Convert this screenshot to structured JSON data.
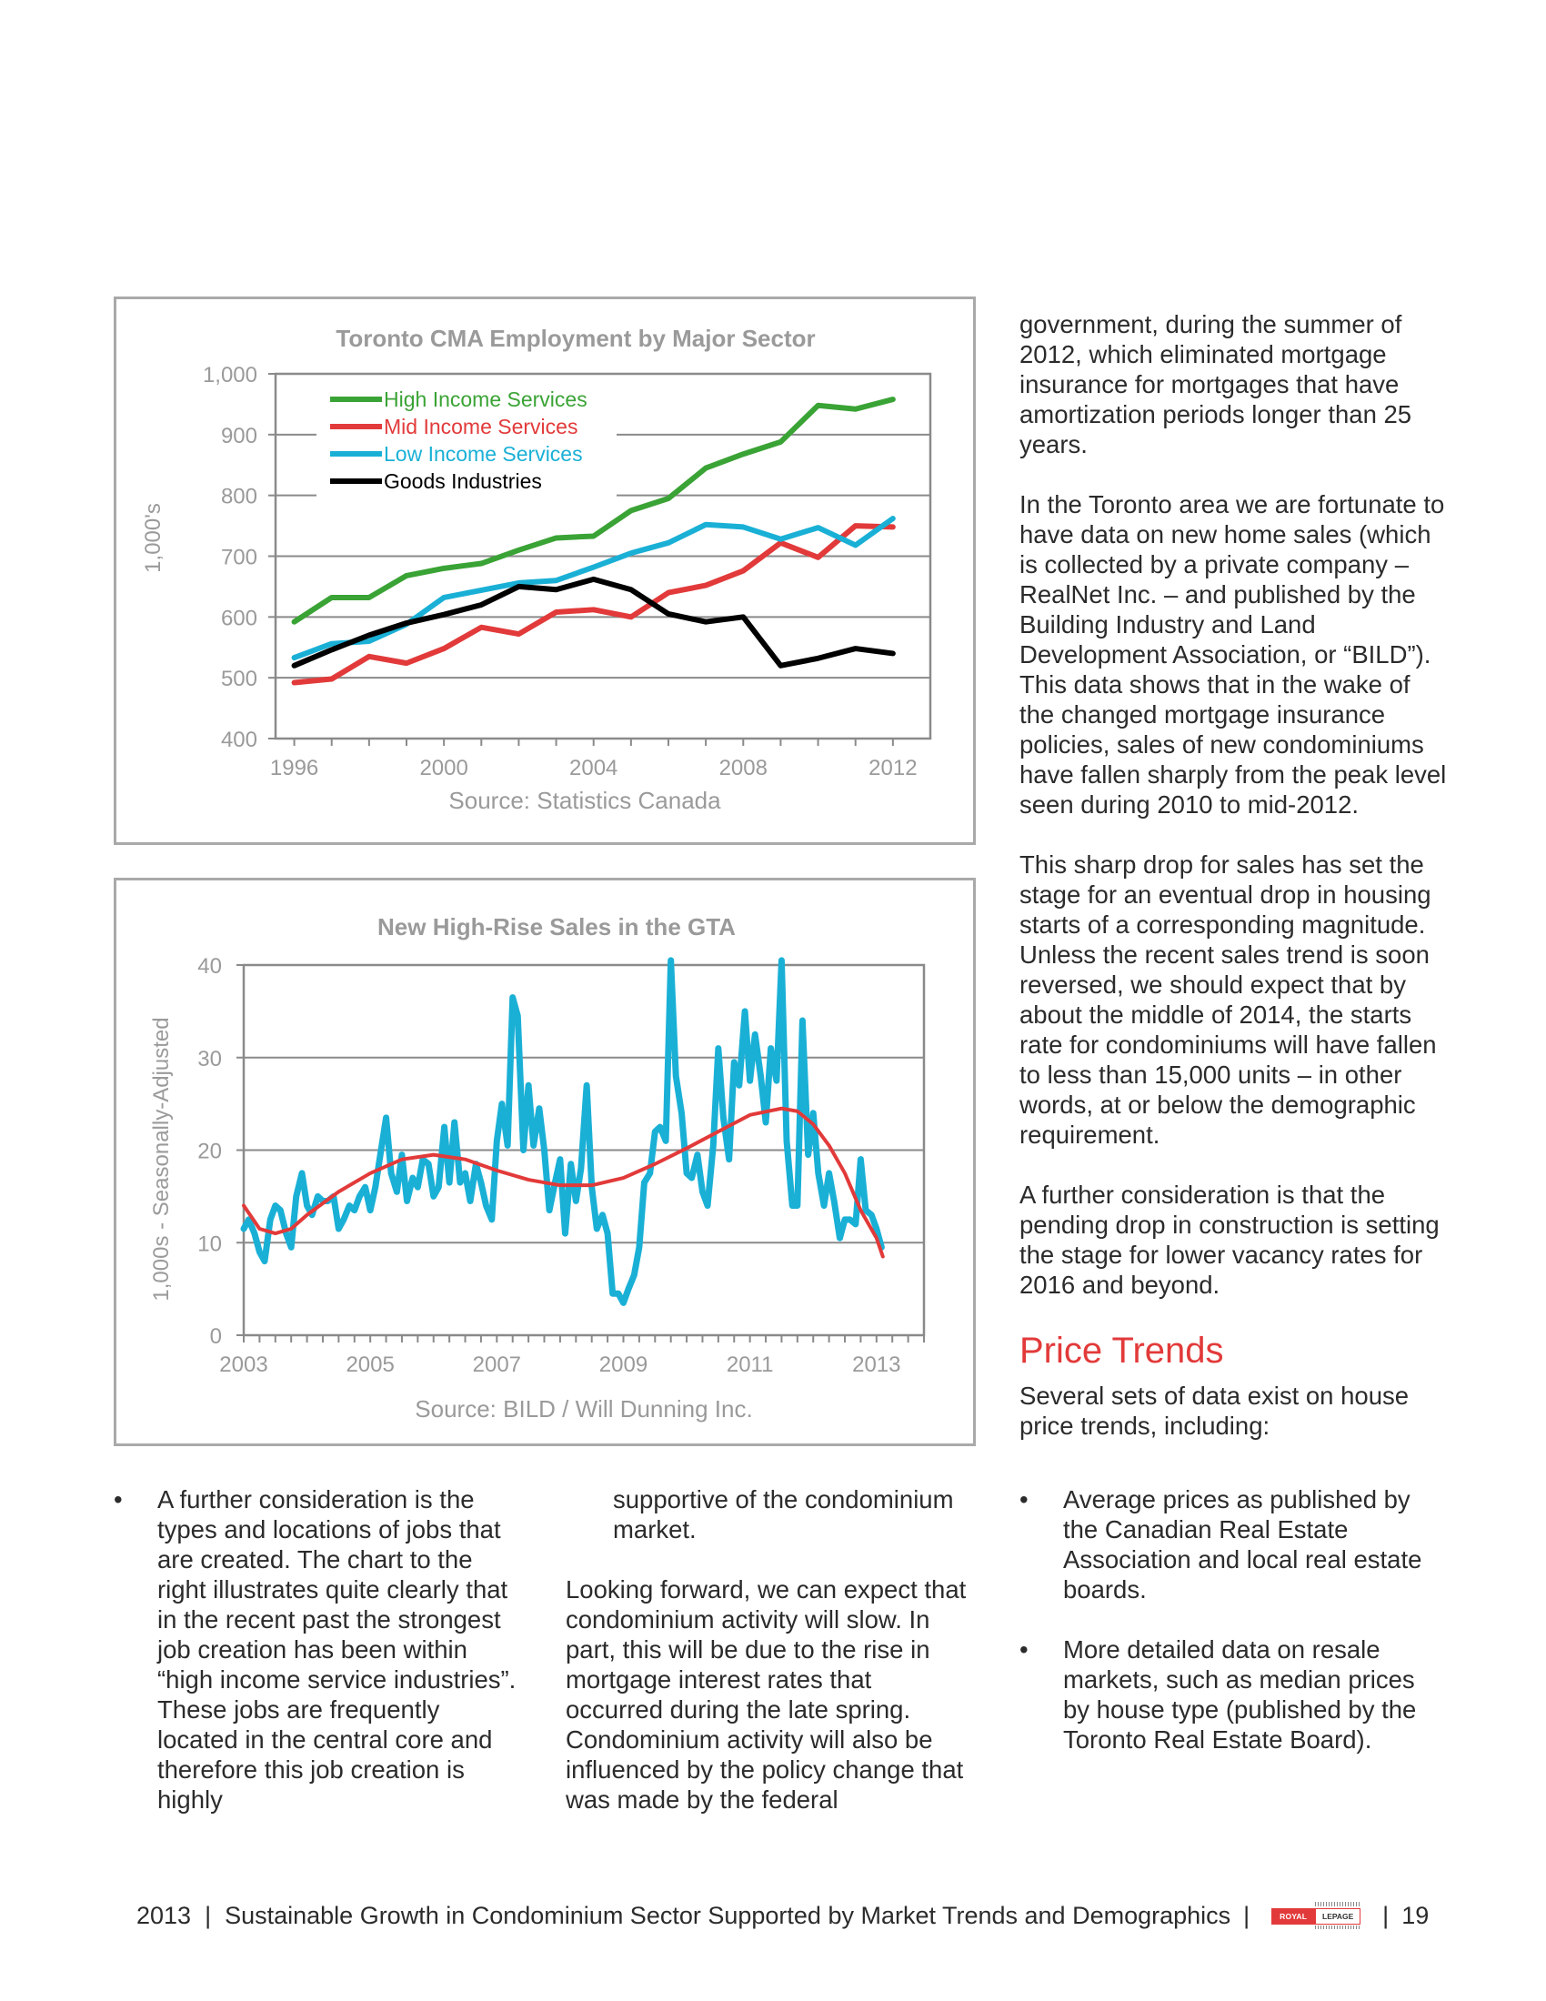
{
  "charts": {
    "employment": {
      "title": "Toronto CMA Employment by Major Sector",
      "ylabel": "1,000's",
      "source": "Source:  Statistics Canada",
      "y_ticks": [
        "1,000",
        "900",
        "800",
        "700",
        "600",
        "500",
        "400"
      ],
      "x_ticks": [
        "1996",
        "2000",
        "2004",
        "2008",
        "2012"
      ]
    },
    "highrise": {
      "title": "New High-Rise Sales in the GTA",
      "ylabel": "1,000s - Seasonally-Adjusted",
      "source": "Source:  BILD / Will Dunning Inc.",
      "y_ticks": [
        "40",
        "30",
        "20",
        "10",
        "0"
      ],
      "x_ticks": [
        "2003",
        "2005",
        "2007",
        "2009",
        "2011",
        "2013"
      ]
    }
  },
  "chart_data": [
    {
      "type": "line",
      "title": "Toronto CMA Employment by Major Sector",
      "ylabel": "1,000's",
      "ylim": [
        400,
        1000
      ],
      "xlim": [
        1995.5,
        2013
      ],
      "grid": true,
      "legend": "top-left",
      "x": [
        1996,
        1997,
        1998,
        1999,
        2000,
        2001,
        2002,
        2003,
        2004,
        2005,
        2006,
        2007,
        2008,
        2009,
        2010,
        2011,
        2012
      ],
      "series": [
        {
          "name": "High Income Services",
          "color": "#3aa335",
          "values": [
            592,
            632,
            632,
            668,
            680,
            688,
            710,
            730,
            733,
            775,
            795,
            845,
            868,
            888,
            948,
            942,
            958
          ]
        },
        {
          "name": "Mid Income Services",
          "color": "#e23a3a",
          "values": [
            492,
            498,
            535,
            524,
            548,
            583,
            572,
            608,
            612,
            600,
            640,
            652,
            676,
            722,
            698,
            750,
            748
          ]
        },
        {
          "name": "Low Income Services",
          "color": "#1ab0d6",
          "values": [
            533,
            556,
            560,
            588,
            632,
            644,
            656,
            660,
            682,
            705,
            722,
            752,
            748,
            728,
            747,
            718,
            762
          ]
        },
        {
          "name": "Goods Industries",
          "color": "#000000",
          "values": [
            520,
            546,
            570,
            590,
            604,
            620,
            650,
            645,
            662,
            645,
            605,
            592,
            600,
            520,
            532,
            548,
            540
          ]
        }
      ]
    },
    {
      "type": "line",
      "title": "New High-Rise Sales in the GTA",
      "ylabel": "1,000s - Seasonally-Adjusted",
      "ylim": [
        0,
        40
      ],
      "xlim": [
        2003,
        2013.75
      ],
      "grid": true,
      "series": [
        {
          "name": "",
          "color": "#1ab0d6",
          "style": "thick",
          "points": [
            [
              2003.0,
              11.5
            ],
            [
              2003.08,
              12.5
            ],
            [
              2003.17,
              11.0
            ],
            [
              2003.25,
              9.0
            ],
            [
              2003.33,
              8.0
            ],
            [
              2003.42,
              12.5
            ],
            [
              2003.5,
              14.0
            ],
            [
              2003.58,
              13.5
            ],
            [
              2003.67,
              11.0
            ],
            [
              2003.75,
              9.5
            ],
            [
              2003.83,
              15.0
            ],
            [
              2003.92,
              17.5
            ],
            [
              2004.0,
              14.0
            ],
            [
              2004.08,
              13.0
            ],
            [
              2004.17,
              15.0
            ],
            [
              2004.25,
              14.5
            ],
            [
              2004.33,
              14.5
            ],
            [
              2004.42,
              15.0
            ],
            [
              2004.5,
              11.5
            ],
            [
              2004.58,
              12.5
            ],
            [
              2004.67,
              14.0
            ],
            [
              2004.75,
              13.5
            ],
            [
              2004.83,
              15.0
            ],
            [
              2004.92,
              16.0
            ],
            [
              2005.0,
              13.5
            ],
            [
              2005.08,
              16.0
            ],
            [
              2005.17,
              20.0
            ],
            [
              2005.25,
              23.5
            ],
            [
              2005.33,
              17.5
            ],
            [
              2005.42,
              15.5
            ],
            [
              2005.5,
              19.5
            ],
            [
              2005.58,
              14.5
            ],
            [
              2005.67,
              17.0
            ],
            [
              2005.75,
              16.0
            ],
            [
              2005.83,
              19.0
            ],
            [
              2005.92,
              18.5
            ],
            [
              2006.0,
              15.0
            ],
            [
              2006.08,
              16.0
            ],
            [
              2006.17,
              22.5
            ],
            [
              2006.25,
              16.5
            ],
            [
              2006.33,
              23.0
            ],
            [
              2006.42,
              16.5
            ],
            [
              2006.5,
              17.5
            ],
            [
              2006.58,
              14.5
            ],
            [
              2006.67,
              18.5
            ],
            [
              2006.75,
              16.5
            ],
            [
              2006.83,
              14.0
            ],
            [
              2006.92,
              12.5
            ],
            [
              2007.0,
              21.0
            ],
            [
              2007.08,
              25.0
            ],
            [
              2007.17,
              20.5
            ],
            [
              2007.25,
              36.5
            ],
            [
              2007.33,
              34.5
            ],
            [
              2007.42,
              20.0
            ],
            [
              2007.5,
              27.0
            ],
            [
              2007.58,
              20.5
            ],
            [
              2007.67,
              24.5
            ],
            [
              2007.75,
              20.0
            ],
            [
              2007.83,
              13.5
            ],
            [
              2007.92,
              16.5
            ],
            [
              2008.0,
              19.0
            ],
            [
              2008.08,
              11.0
            ],
            [
              2008.17,
              18.5
            ],
            [
              2008.25,
              14.5
            ],
            [
              2008.33,
              18.0
            ],
            [
              2008.42,
              27.0
            ],
            [
              2008.5,
              16.0
            ],
            [
              2008.58,
              11.5
            ],
            [
              2008.67,
              13.0
            ],
            [
              2008.75,
              11.0
            ],
            [
              2008.83,
              4.5
            ],
            [
              2008.92,
              4.5
            ],
            [
              2009.0,
              3.5
            ],
            [
              2009.08,
              5.0
            ],
            [
              2009.17,
              6.5
            ],
            [
              2009.25,
              9.5
            ],
            [
              2009.33,
              16.5
            ],
            [
              2009.42,
              17.5
            ],
            [
              2009.5,
              22.0
            ],
            [
              2009.58,
              22.5
            ],
            [
              2009.67,
              21.0
            ],
            [
              2009.75,
              40.5
            ],
            [
              2009.83,
              28.0
            ],
            [
              2009.92,
              24.0
            ],
            [
              2010.0,
              17.5
            ],
            [
              2010.08,
              17.0
            ],
            [
              2010.17,
              19.5
            ],
            [
              2010.25,
              15.5
            ],
            [
              2010.33,
              14.0
            ],
            [
              2010.42,
              20.5
            ],
            [
              2010.5,
              31.0
            ],
            [
              2010.58,
              23.5
            ],
            [
              2010.67,
              19.0
            ],
            [
              2010.75,
              29.5
            ],
            [
              2010.83,
              27.0
            ],
            [
              2010.92,
              35.0
            ],
            [
              2011.0,
              27.5
            ],
            [
              2011.08,
              32.5
            ],
            [
              2011.17,
              28.0
            ],
            [
              2011.25,
              23.0
            ],
            [
              2011.33,
              31.0
            ],
            [
              2011.42,
              27.5
            ],
            [
              2011.5,
              40.5
            ],
            [
              2011.58,
              21.0
            ],
            [
              2011.67,
              14.0
            ],
            [
              2011.75,
              14.0
            ],
            [
              2011.83,
              34.0
            ],
            [
              2011.92,
              19.5
            ],
            [
              2012.0,
              24.0
            ],
            [
              2012.08,
              17.5
            ],
            [
              2012.17,
              14.0
            ],
            [
              2012.25,
              17.5
            ],
            [
              2012.33,
              14.5
            ],
            [
              2012.42,
              10.5
            ],
            [
              2012.5,
              12.5
            ],
            [
              2012.58,
              12.5
            ],
            [
              2012.67,
              12.0
            ],
            [
              2012.75,
              19.0
            ],
            [
              2012.83,
              13.5
            ],
            [
              2012.92,
              13.0
            ],
            [
              2013.0,
              11.5
            ],
            [
              2013.08,
              9.5
            ]
          ]
        },
        {
          "name": "",
          "color": "#e23a3a",
          "style": "trend",
          "points": [
            [
              2003.0,
              14.0
            ],
            [
              2003.25,
              11.5
            ],
            [
              2003.5,
              11.0
            ],
            [
              2003.75,
              11.5
            ],
            [
              2004.0,
              13.0
            ],
            [
              2004.5,
              15.5
            ],
            [
              2005.0,
              17.5
            ],
            [
              2005.5,
              19.0
            ],
            [
              2006.0,
              19.5
            ],
            [
              2006.5,
              19.0
            ],
            [
              2007.0,
              17.8
            ],
            [
              2007.5,
              16.8
            ],
            [
              2008.0,
              16.2
            ],
            [
              2008.5,
              16.2
            ],
            [
              2009.0,
              17.0
            ],
            [
              2009.5,
              18.5
            ],
            [
              2010.0,
              20.2
            ],
            [
              2010.5,
              22.0
            ],
            [
              2011.0,
              23.8
            ],
            [
              2011.5,
              24.5
            ],
            [
              2011.75,
              24.2
            ],
            [
              2012.0,
              22.8
            ],
            [
              2012.25,
              20.5
            ],
            [
              2012.5,
              17.5
            ],
            [
              2012.75,
              13.5
            ],
            [
              2013.0,
              10.5
            ],
            [
              2013.1,
              8.5
            ]
          ]
        }
      ]
    }
  ],
  "right_column": {
    "p1": "government, during the summer of 2012, which eliminated mortgage insurance for mortgages that have amortization periods longer than 25 years.",
    "p2": "In the Toronto area we are fortunate to have data on new home sales (which is collected by a private company – RealNet Inc. – and published by the Building Industry and Land Development Association, or “BILD”). This data shows that in the wake of the changed mortgage insurance policies, sales of new condominiums have fallen sharply from the peak level seen during 2010 to mid-2012.",
    "p3": "This sharp drop for sales has set the stage for an eventual drop in housing starts of a corresponding magnitude. Unless the recent sales trend is soon reversed, we should expect that by about the middle of 2014, the starts rate for condominiums will have fallen to less than 15,000 units – in other words, at or below the demographic requirement.",
    "p4": "A further consideration is that the pending drop in construction is setting the stage for lower vacancy rates for 2016 and beyond.",
    "heading": "Price Trends",
    "p5": "Several sets of data exist on house price trends, including:"
  },
  "bottom": {
    "bullet_char": "•",
    "left_bullet": "A further consideration is the types and locations of jobs that are created. The chart to the right illustrates quite clearly that in the recent past the strongest job creation has been within “high income service industries”. These jobs are frequently located in the central core and therefore this job creation is highly",
    "mid_cont": "supportive of the condominium market.",
    "mid_p": "Looking forward, we can expect that condominium activity will slow. In part, this will be due to the rise in mortgage interest rates that occurred during the late spring. Condominium activity will also be influenced by the policy change that was made by the federal",
    "right_bullets": [
      "Average prices as published by the Canadian Real Estate Association and local real estate boards.",
      "More detailed data on resale markets, such as median prices by house type (published by the Toronto Real Estate Board)."
    ]
  },
  "footer": {
    "text": "2013  |  Sustainable Growth in Condominium Sector Supported by Market Trends and Demographics",
    "sep": "|",
    "logo_left": "ROYAL",
    "logo_right": "LEPAGE",
    "page": "19"
  }
}
